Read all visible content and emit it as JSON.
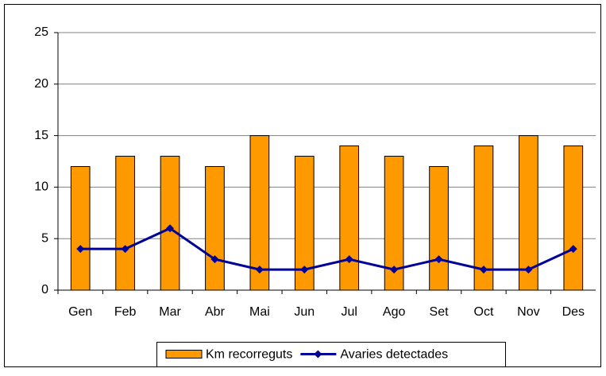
{
  "chart_data": {
    "type": "bar",
    "categories": [
      "Gen",
      "Feb",
      "Mar",
      "Abr",
      "Mai",
      "Jun",
      "Jul",
      "Ago",
      "Set",
      "Oct",
      "Nov",
      "Des"
    ],
    "series": [
      {
        "name": "Km recorreguts",
        "type": "bar",
        "color": "#ff9900",
        "values": [
          12,
          13,
          13,
          12,
          15,
          13,
          14,
          13,
          12,
          14,
          15,
          14
        ]
      },
      {
        "name": "Avaries detectades",
        "type": "line",
        "color": "#000099",
        "values": [
          4,
          4,
          6,
          3,
          2,
          2,
          3,
          2,
          3,
          2,
          2,
          4
        ]
      }
    ],
    "ylim": [
      0,
      25
    ],
    "yticks": [
      0,
      5,
      10,
      15,
      20,
      25
    ],
    "grid": true,
    "legend": "bottom"
  }
}
